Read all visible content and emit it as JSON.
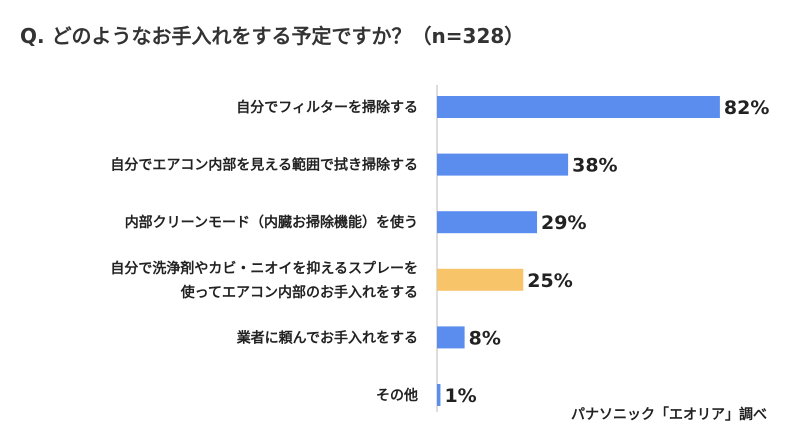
{
  "chart_data": {
    "type": "bar",
    "orientation": "horizontal",
    "title": "Q. どのようなお手入れをする予定ですか？（n=328）",
    "categories": [
      [
        "自分でフィルターを掃除する"
      ],
      [
        "自分でエアコン内部を見える範囲で拭き掃除する"
      ],
      [
        "内部クリーンモード（内臓お掃除機能）を使う"
      ],
      [
        "自分で洗浄剤やカビ・ニオイを抑えるスプレーを",
        "使ってエアコン内部のお手入れをする"
      ],
      [
        "業者に頼んでお手入れをする"
      ],
      [
        "その他"
      ]
    ],
    "values": [
      82,
      38,
      29,
      25,
      8,
      1
    ],
    "value_labels": [
      "82%",
      "38%",
      "29%",
      "25%",
      "8%",
      "1%"
    ],
    "unit": "%",
    "xlim": [
      0,
      100
    ],
    "grid": false,
    "bar_colors": [
      "#5B8DEF",
      "#5B8DEF",
      "#5B8DEF",
      "#F8C46A",
      "#5B8DEF",
      "#5B8DEF"
    ],
    "highlight_index": 3
  },
  "source": "パナソニック「エオリア」調べ"
}
